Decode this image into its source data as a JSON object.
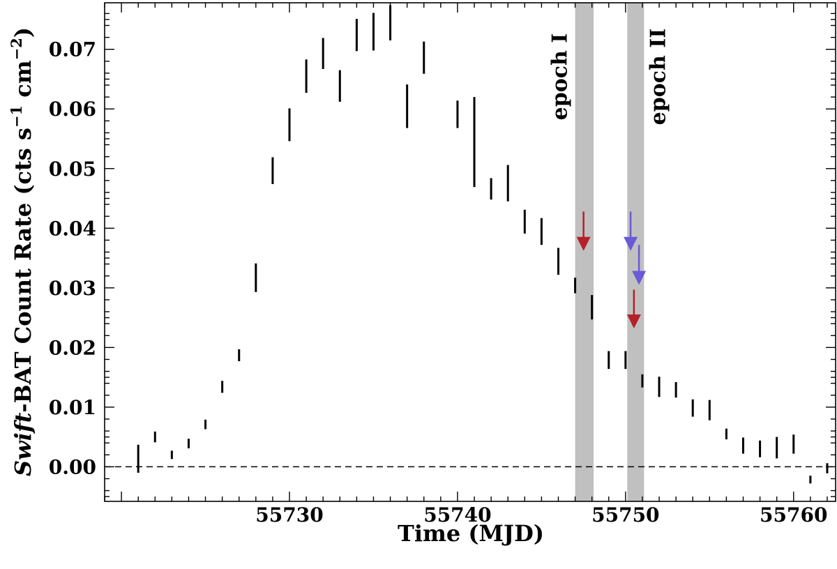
{
  "chart_data": {
    "type": "scatter",
    "xlabel": "Time (MJD)",
    "ylabel_parts": {
      "italic": "Swift",
      "main": "-BAT Count Rate (cts s",
      "sup1": "−1",
      "mid": " cm",
      "sup2": "−2",
      "end": ")"
    },
    "xlim": [
      55719.0,
      55762.5
    ],
    "ylim": [
      -0.0058,
      0.0778
    ],
    "xticks": [
      55730,
      55740,
      55750,
      55760
    ],
    "xtick_labels": [
      "55730",
      "55740",
      "55750",
      "55760"
    ],
    "yticks": [
      0.0,
      0.01,
      0.02,
      0.03,
      0.04,
      0.05,
      0.06,
      0.07
    ],
    "ytick_labels": [
      "0.00",
      "0.01",
      "0.02",
      "0.03",
      "0.04",
      "0.05",
      "0.06",
      "0.07"
    ],
    "zero_line": true,
    "grid": false,
    "series": [
      {
        "style": "error-bars",
        "points": [
          {
            "x": 55721,
            "ylo": -0.001,
            "yhi": 0.0037
          },
          {
            "x": 55722,
            "ylo": 0.0041,
            "yhi": 0.0059
          },
          {
            "x": 55723,
            "ylo": 0.0013,
            "yhi": 0.0027
          },
          {
            "x": 55724,
            "ylo": 0.0031,
            "yhi": 0.0047
          },
          {
            "x": 55725,
            "ylo": 0.0063,
            "yhi": 0.0079
          },
          {
            "x": 55726,
            "ylo": 0.0124,
            "yhi": 0.0144
          },
          {
            "x": 55727,
            "ylo": 0.0177,
            "yhi": 0.0197
          },
          {
            "x": 55728,
            "ylo": 0.0293,
            "yhi": 0.0341
          },
          {
            "x": 55729,
            "ylo": 0.0474,
            "yhi": 0.0519
          },
          {
            "x": 55730,
            "ylo": 0.0546,
            "yhi": 0.0601
          },
          {
            "x": 55731,
            "ylo": 0.0627,
            "yhi": 0.0683
          },
          {
            "x": 55732,
            "ylo": 0.0667,
            "yhi": 0.0719
          },
          {
            "x": 55733,
            "ylo": 0.0612,
            "yhi": 0.0665
          },
          {
            "x": 55734,
            "ylo": 0.0697,
            "yhi": 0.0751
          },
          {
            "x": 55735,
            "ylo": 0.0698,
            "yhi": 0.0761
          },
          {
            "x": 55736,
            "ylo": 0.0715,
            "yhi": 0.0774
          },
          {
            "x": 55737,
            "ylo": 0.0568,
            "yhi": 0.0641
          },
          {
            "x": 55738,
            "ylo": 0.0659,
            "yhi": 0.0713
          },
          {
            "x": 55740,
            "ylo": 0.0568,
            "yhi": 0.0614
          },
          {
            "x": 55741,
            "ylo": 0.0469,
            "yhi": 0.062
          },
          {
            "x": 55742,
            "ylo": 0.0448,
            "yhi": 0.0484
          },
          {
            "x": 55743,
            "ylo": 0.0445,
            "yhi": 0.0506
          },
          {
            "x": 55744,
            "ylo": 0.0391,
            "yhi": 0.0431
          },
          {
            "x": 55745,
            "ylo": 0.0372,
            "yhi": 0.0417
          },
          {
            "x": 55746,
            "ylo": 0.0322,
            "yhi": 0.0367
          },
          {
            "x": 55747,
            "ylo": 0.0291,
            "yhi": 0.0317
          },
          {
            "x": 55748,
            "ylo": 0.0247,
            "yhi": 0.0288
          },
          {
            "x": 55749,
            "ylo": 0.0164,
            "yhi": 0.0194
          },
          {
            "x": 55750,
            "ylo": 0.0164,
            "yhi": 0.0194
          },
          {
            "x": 55751,
            "ylo": 0.0133,
            "yhi": 0.0155
          },
          {
            "x": 55752,
            "ylo": 0.0117,
            "yhi": 0.0151
          },
          {
            "x": 55753,
            "ylo": 0.0116,
            "yhi": 0.0142
          },
          {
            "x": 55754,
            "ylo": 0.0084,
            "yhi": 0.0113
          },
          {
            "x": 55755,
            "ylo": 0.0078,
            "yhi": 0.0112
          },
          {
            "x": 55756,
            "ylo": 0.0046,
            "yhi": 0.0064
          },
          {
            "x": 55757,
            "ylo": 0.0022,
            "yhi": 0.0049
          },
          {
            "x": 55758,
            "ylo": 0.0016,
            "yhi": 0.0044
          },
          {
            "x": 55759,
            "ylo": 0.0014,
            "yhi": 0.005
          },
          {
            "x": 55760,
            "ylo": 0.0022,
            "yhi": 0.0054
          },
          {
            "x": 55761,
            "ylo": -0.0028,
            "yhi": -0.0015
          },
          {
            "x": 55762,
            "ylo": -0.0011,
            "yhi": 0.0006
          }
        ]
      }
    ],
    "epochs": [
      {
        "label": "epoch I",
        "x0": 55747.0,
        "x1": 55748.1,
        "label_side": "left",
        "color": "#c0c0c0"
      },
      {
        "label": "epoch II",
        "x0": 55750.1,
        "x1": 55751.1,
        "label_side": "right",
        "color": "#c0c0c0"
      }
    ],
    "upper_limits": [
      {
        "x": 55747.5,
        "y_top": 0.0428,
        "y_tip": 0.0362,
        "color": "#b5202a"
      },
      {
        "x": 55750.3,
        "y_top": 0.0428,
        "y_tip": 0.0362,
        "color": "#6a5ad6"
      },
      {
        "x": 55750.8,
        "y_top": 0.0372,
        "y_tip": 0.0305,
        "color": "#6a5ad6"
      },
      {
        "x": 55750.5,
        "y_top": 0.0297,
        "y_tip": 0.0232,
        "color": "#b5202a"
      }
    ]
  }
}
